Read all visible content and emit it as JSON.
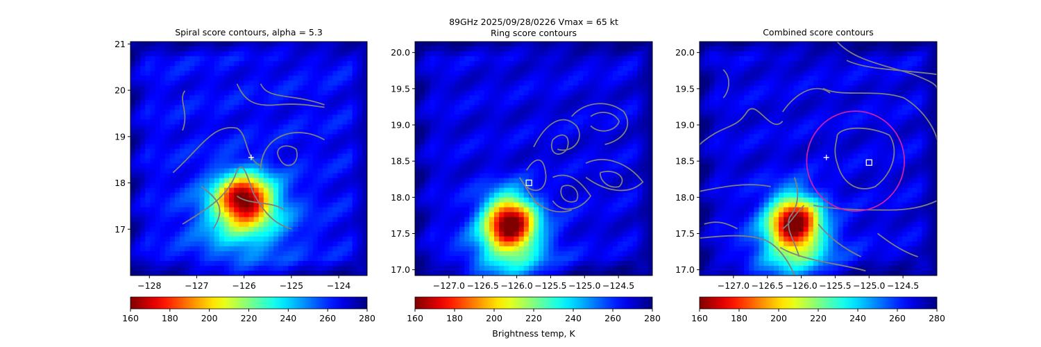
{
  "suptitle": {
    "line1": "89GHz  2025/09/28/0226    Vmax = 65 kt",
    "line2": "Ring score contours"
  },
  "colors": {
    "contour": "#808080",
    "ring": "#cc1fb0",
    "marker": "#ffffff"
  },
  "colorbar_label": "Brightness temp, K",
  "chart_data": [
    {
      "type": "heatmap",
      "title": "Spiral score contours, alpha =  5.3",
      "xlim": [
        -128.4,
        -123.4
      ],
      "ylim": [
        16.0,
        21.05
      ],
      "x_ticks": [
        {
          "value": -128,
          "label": "−128"
        },
        {
          "value": -127,
          "label": "−127"
        },
        {
          "value": -126,
          "label": "−126"
        },
        {
          "value": -125,
          "label": "−125"
        },
        {
          "value": -124,
          "label": "−124"
        }
      ],
      "y_ticks": [
        {
          "value": 17,
          "label": "17"
        },
        {
          "value": 18,
          "label": "18"
        },
        {
          "value": 19,
          "label": "19"
        },
        {
          "value": 20,
          "label": "20"
        },
        {
          "value": 21,
          "label": "21"
        }
      ],
      "warm_core": {
        "lon": -126.0,
        "lat": 17.65,
        "spread_lon": 0.55,
        "spread_lat": 0.5,
        "min_tb": 175
      },
      "background_tb": 265,
      "markers": [
        {
          "kind": "plus",
          "lon": -125.85,
          "lat": 18.55
        }
      ],
      "ring": null,
      "colorbar": {
        "cmap": "jet_r",
        "range": [
          160,
          280
        ],
        "ticks": [
          160,
          180,
          200,
          220,
          240,
          260,
          280
        ]
      }
    },
    {
      "type": "heatmap",
      "title": "",
      "xlim": [
        -127.5,
        -124.0
      ],
      "ylim": [
        16.92,
        20.15
      ],
      "x_ticks": [
        {
          "value": -127.0,
          "label": "−127.0"
        },
        {
          "value": -126.5,
          "label": "−126.5"
        },
        {
          "value": -126.0,
          "label": "−126.0"
        },
        {
          "value": -125.5,
          "label": "−125.5"
        },
        {
          "value": -125.0,
          "label": "−125.0"
        },
        {
          "value": -124.5,
          "label": "−124.5"
        }
      ],
      "y_ticks": [
        {
          "value": 17.0,
          "label": "17.0"
        },
        {
          "value": 17.5,
          "label": "17.5"
        },
        {
          "value": 18.0,
          "label": "18.0"
        },
        {
          "value": 18.5,
          "label": "18.5"
        },
        {
          "value": 19.0,
          "label": "19.0"
        },
        {
          "value": 19.5,
          "label": "19.5"
        },
        {
          "value": 20.0,
          "label": "20.0"
        }
      ],
      "warm_core": {
        "lon": -126.1,
        "lat": 17.65,
        "spread_lon": 0.35,
        "spread_lat": 0.35,
        "min_tb": 168
      },
      "background_tb": 268,
      "markers": [
        {
          "kind": "square",
          "lon": -125.82,
          "lat": 18.2
        }
      ],
      "ring": null,
      "colorbar": {
        "cmap": "jet_r",
        "range": [
          160,
          280
        ],
        "ticks": [
          160,
          180,
          200,
          220,
          240,
          260,
          280
        ]
      }
    },
    {
      "type": "heatmap",
      "title": "Combined score contours",
      "xlim": [
        -127.5,
        -124.0
      ],
      "ylim": [
        16.92,
        20.15
      ],
      "x_ticks": [
        {
          "value": -127.0,
          "label": "−127.0"
        },
        {
          "value": -126.5,
          "label": "−126.5"
        },
        {
          "value": -126.0,
          "label": "−126.0"
        },
        {
          "value": -125.5,
          "label": "−125.5"
        },
        {
          "value": -125.0,
          "label": "−125.0"
        },
        {
          "value": -124.5,
          "label": "−124.5"
        }
      ],
      "y_ticks": [
        {
          "value": 17.0,
          "label": "17.0"
        },
        {
          "value": 17.5,
          "label": "17.5"
        },
        {
          "value": 18.0,
          "label": "18.0"
        },
        {
          "value": 18.5,
          "label": "18.5"
        },
        {
          "value": 19.0,
          "label": "19.0"
        },
        {
          "value": 19.5,
          "label": "19.5"
        },
        {
          "value": 20.0,
          "label": "20.0"
        }
      ],
      "warm_core": {
        "lon": -126.1,
        "lat": 17.65,
        "spread_lon": 0.35,
        "spread_lat": 0.35,
        "min_tb": 168
      },
      "background_tb": 268,
      "markers": [
        {
          "kind": "plus",
          "lon": -125.63,
          "lat": 18.55
        },
        {
          "kind": "square",
          "lon": -125.0,
          "lat": 18.48
        }
      ],
      "ring": {
        "lon": -125.2,
        "lat": 18.5,
        "r_lon": 0.72,
        "r_lat": 0.69
      },
      "colorbar": {
        "cmap": "jet_r",
        "range": [
          160,
          280
        ],
        "ticks": [
          160,
          180,
          200,
          220,
          240,
          260,
          280
        ]
      }
    }
  ]
}
